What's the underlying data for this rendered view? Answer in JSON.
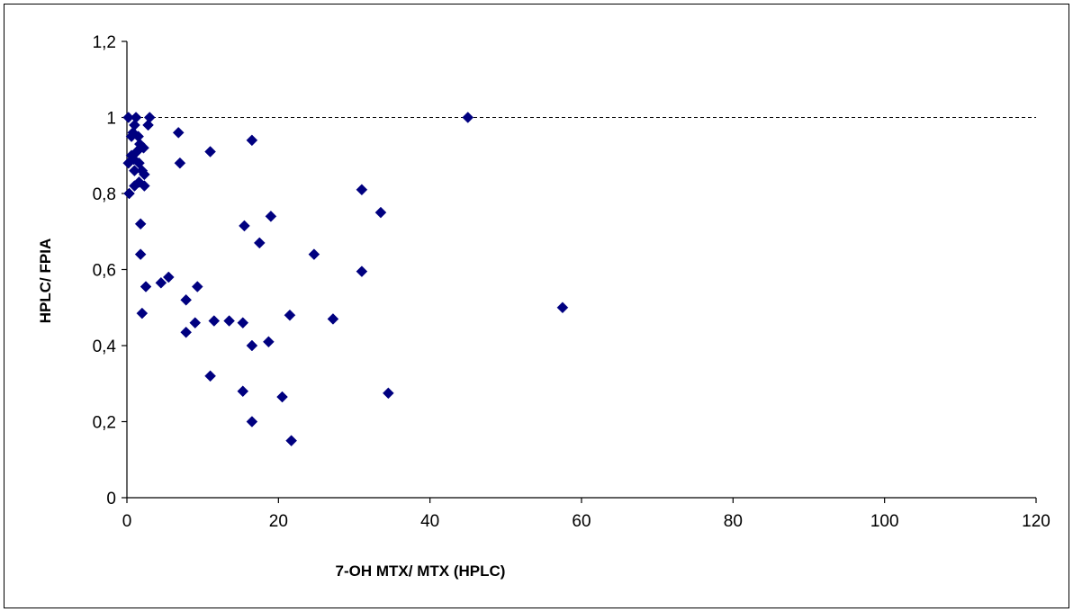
{
  "chart_data": {
    "type": "scatter",
    "title": "",
    "xlabel": "7-OH MTX/ MTX (HPLC)",
    "ylabel": "HPLC/ FPIA",
    "xlim": [
      0,
      120
    ],
    "ylim": [
      0,
      1.2
    ],
    "x_ticks": [
      "0",
      "20",
      "40",
      "60",
      "80",
      "100",
      "120"
    ],
    "y_ticks": [
      "0",
      "0,2",
      "0,4",
      "0,6",
      "0,8",
      "1",
      "1,2"
    ],
    "reference_line": {
      "y": 1,
      "style": "dashed"
    },
    "grid": false,
    "legend": "none",
    "marker": "diamond",
    "marker_color": "#000080",
    "points": [
      [
        0.2,
        1.0
      ],
      [
        1.2,
        1.0
      ],
      [
        3.0,
        1.0
      ],
      [
        45.0,
        1.0
      ],
      [
        1.0,
        0.98
      ],
      [
        2.8,
        0.98
      ],
      [
        0.8,
        0.96
      ],
      [
        1.5,
        0.95
      ],
      [
        0.6,
        0.95
      ],
      [
        1.7,
        0.93
      ],
      [
        2.2,
        0.92
      ],
      [
        6.8,
        0.96
      ],
      [
        16.5,
        0.94
      ],
      [
        11.0,
        0.91
      ],
      [
        0.6,
        0.9
      ],
      [
        1.3,
        0.91
      ],
      [
        0.2,
        0.88
      ],
      [
        0.9,
        0.89
      ],
      [
        1.6,
        0.88
      ],
      [
        7.0,
        0.88
      ],
      [
        1.0,
        0.86
      ],
      [
        2.0,
        0.86
      ],
      [
        2.3,
        0.85
      ],
      [
        1.6,
        0.83
      ],
      [
        1.0,
        0.82
      ],
      [
        2.3,
        0.82
      ],
      [
        0.3,
        0.8
      ],
      [
        31.0,
        0.81
      ],
      [
        33.5,
        0.75
      ],
      [
        19.0,
        0.74
      ],
      [
        1.8,
        0.72
      ],
      [
        15.5,
        0.715
      ],
      [
        17.5,
        0.67
      ],
      [
        1.8,
        0.64
      ],
      [
        24.7,
        0.64
      ],
      [
        31.0,
        0.595
      ],
      [
        5.5,
        0.58
      ],
      [
        4.5,
        0.565
      ],
      [
        2.5,
        0.555
      ],
      [
        9.3,
        0.555
      ],
      [
        7.8,
        0.52
      ],
      [
        57.5,
        0.5
      ],
      [
        2.0,
        0.485
      ],
      [
        21.5,
        0.48
      ],
      [
        27.2,
        0.47
      ],
      [
        11.5,
        0.465
      ],
      [
        13.5,
        0.465
      ],
      [
        15.3,
        0.46
      ],
      [
        9.0,
        0.46
      ],
      [
        7.8,
        0.435
      ],
      [
        18.7,
        0.41
      ],
      [
        16.5,
        0.4
      ],
      [
        11.0,
        0.32
      ],
      [
        15.3,
        0.28
      ],
      [
        34.5,
        0.275
      ],
      [
        20.5,
        0.265
      ],
      [
        16.5,
        0.2
      ],
      [
        21.7,
        0.15
      ]
    ]
  }
}
